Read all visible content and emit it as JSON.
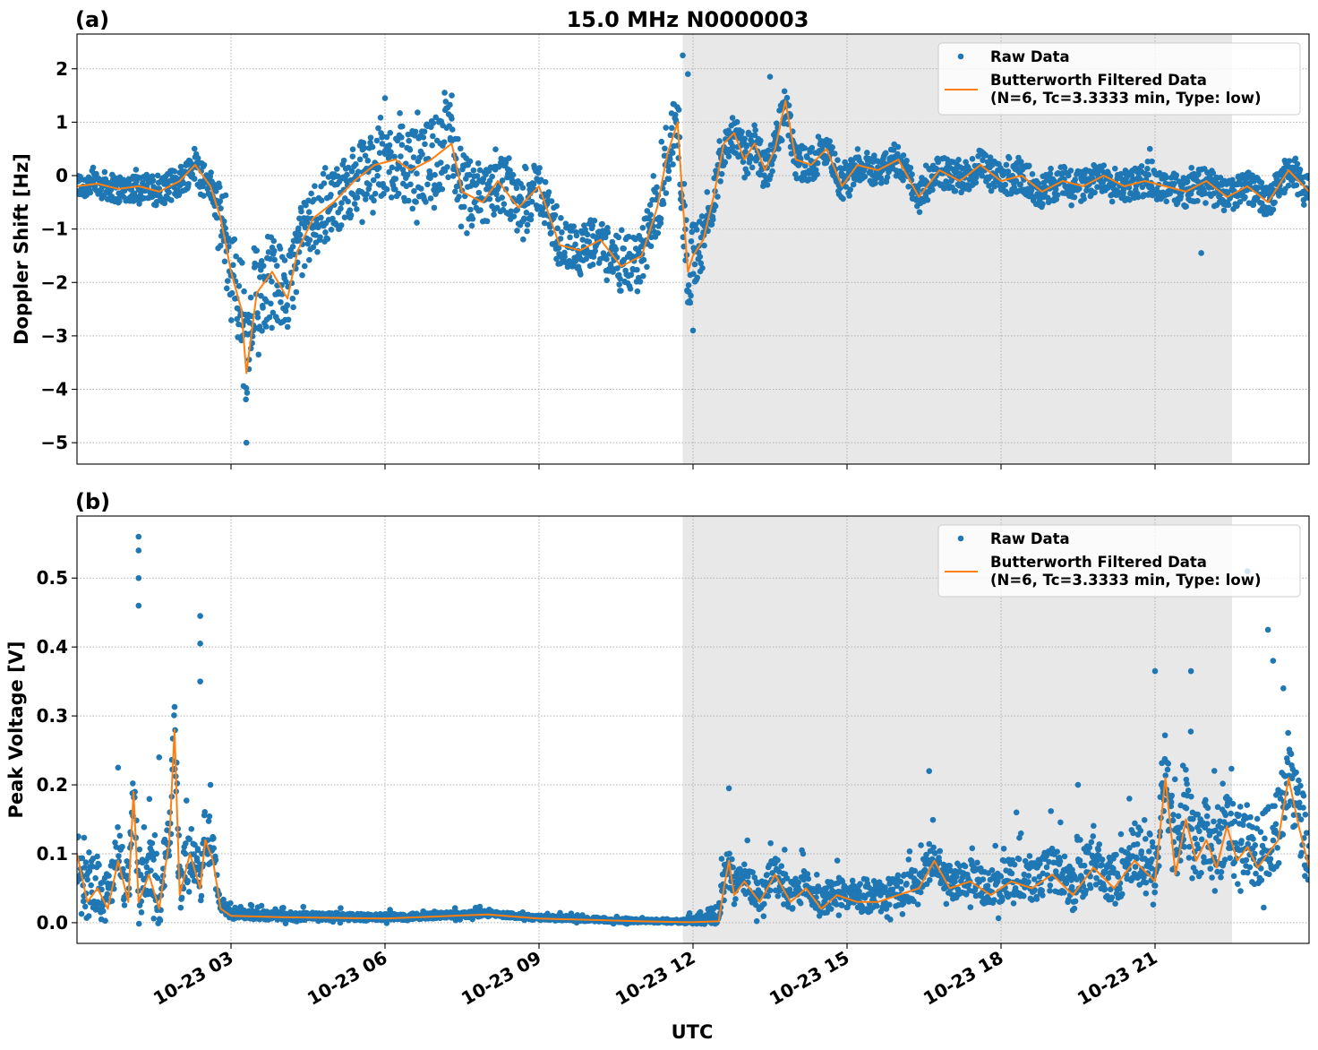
{
  "title": "15.0 MHz N0000003",
  "xlabel": "UTC",
  "colors": {
    "raw": "#1f77b4",
    "filtered": "#ff7f0e",
    "shade": "#e8e8e8"
  },
  "chart_data": [
    {
      "panel_label": "(a)",
      "type": "line",
      "ylabel": "Doppler Shift [Hz]",
      "xlim_hours": [
        0.0,
        24.0
      ],
      "ylim": [
        -5.4,
        2.65
      ],
      "yticks": [
        2,
        1,
        0,
        -1,
        -2,
        -3,
        -4,
        -5
      ],
      "ytick_labels": [
        "2",
        "1",
        "0",
        "−1",
        "−2",
        "−3",
        "−4",
        "−5"
      ],
      "xticks_hours": [
        3,
        6,
        9,
        12,
        15,
        18,
        21
      ],
      "xtick_labels": [
        "10-23 03",
        "10-23 06",
        "10-23 09",
        "10-23 12",
        "10-23 15",
        "10-23 18",
        "10-23 21"
      ],
      "shaded_span_hours": [
        11.8,
        22.5
      ],
      "legend": {
        "placement": "upper right",
        "entries": [
          "Raw Data",
          "Butterworth Filtered Data",
          "(N=6, Tc=3.3333 min, Type: low)"
        ]
      },
      "series": [
        {
          "name": "Butterworth Filtered Data",
          "x_hours": [
            0.0,
            0.4,
            0.8,
            1.2,
            1.6,
            2.0,
            2.3,
            2.6,
            2.8,
            3.0,
            3.2,
            3.3,
            3.5,
            3.8,
            4.1,
            4.3,
            4.6,
            5.0,
            5.4,
            5.8,
            6.2,
            6.5,
            6.9,
            7.3,
            7.5,
            7.9,
            8.2,
            8.6,
            9.0,
            9.4,
            9.8,
            10.2,
            10.6,
            11.0,
            11.3,
            11.5,
            11.7,
            11.8,
            11.9,
            12.0,
            12.2,
            12.4,
            12.6,
            12.8,
            13.0,
            13.2,
            13.4,
            13.6,
            13.8,
            14.0,
            14.3,
            14.6,
            14.9,
            15.2,
            15.6,
            16.0,
            16.4,
            16.8,
            17.2,
            17.6,
            18.0,
            18.4,
            18.8,
            19.2,
            19.6,
            20.0,
            20.4,
            20.8,
            21.2,
            21.6,
            22.0,
            22.4,
            22.8,
            23.2,
            23.6,
            24.0
          ],
          "y": [
            -0.2,
            -0.15,
            -0.25,
            -0.2,
            -0.3,
            -0.1,
            0.2,
            -0.2,
            -0.8,
            -1.8,
            -2.5,
            -3.7,
            -2.2,
            -1.8,
            -2.3,
            -1.4,
            -0.8,
            -0.5,
            -0.1,
            0.2,
            0.3,
            0.1,
            0.3,
            0.6,
            -0.3,
            -0.5,
            -0.1,
            -0.6,
            -0.2,
            -1.3,
            -1.4,
            -1.2,
            -1.7,
            -1.5,
            -0.6,
            0.4,
            1.0,
            -0.5,
            -1.8,
            -1.5,
            -1.2,
            -0.4,
            0.6,
            0.8,
            0.3,
            0.6,
            0.1,
            0.5,
            1.4,
            0.3,
            0.2,
            0.5,
            -0.2,
            0.2,
            0.1,
            0.3,
            -0.4,
            0.1,
            -0.1,
            0.2,
            -0.1,
            0.0,
            -0.3,
            -0.1,
            -0.2,
            0.0,
            -0.2,
            -0.1,
            -0.2,
            -0.3,
            -0.1,
            -0.4,
            -0.2,
            -0.5,
            0.1,
            -0.3
          ]
        },
        {
          "name": "Raw Data",
          "scatter_around": "Butterworth Filtered Data",
          "spread_hz": [
            [
              0.0,
              0.25
            ],
            [
              2.6,
              0.3
            ],
            [
              3.0,
              0.9
            ],
            [
              3.3,
              1.1
            ],
            [
              4.0,
              0.7
            ],
            [
              5.0,
              0.6
            ],
            [
              6.0,
              0.7
            ],
            [
              7.3,
              0.8
            ],
            [
              8.0,
              0.55
            ],
            [
              9.5,
              0.45
            ],
            [
              11.0,
              0.5
            ],
            [
              11.7,
              0.8
            ],
            [
              12.0,
              0.6
            ],
            [
              12.5,
              0.4
            ],
            [
              13.0,
              0.4
            ],
            [
              15.0,
              0.3
            ],
            [
              18.0,
              0.3
            ],
            [
              24.0,
              0.3
            ]
          ],
          "outliers": [
            [
              3.3,
              -5.0
            ],
            [
              11.8,
              2.25
            ],
            [
              11.9,
              1.9
            ],
            [
              13.5,
              1.85
            ],
            [
              12.0,
              -2.9
            ],
            [
              6.0,
              1.45
            ],
            [
              7.3,
              1.5
            ],
            [
              20.9,
              0.5
            ],
            [
              21.9,
              -1.45
            ]
          ]
        }
      ]
    },
    {
      "panel_label": "(b)",
      "type": "line",
      "ylabel": "Peak Voltage [V]",
      "xlim_hours": [
        0.0,
        24.0
      ],
      "ylim": [
        -0.03,
        0.59
      ],
      "yticks": [
        0.0,
        0.1,
        0.2,
        0.3,
        0.4,
        0.5
      ],
      "ytick_labels": [
        "0.0",
        "0.1",
        "0.2",
        "0.3",
        "0.4",
        "0.5"
      ],
      "xticks_hours": [
        3,
        6,
        9,
        12,
        15,
        18,
        21
      ],
      "xtick_labels": [
        "10-23 03",
        "10-23 06",
        "10-23 09",
        "10-23 12",
        "10-23 15",
        "10-23 18",
        "10-23 21"
      ],
      "shaded_span_hours": [
        11.8,
        22.5
      ],
      "legend": {
        "placement": "upper right",
        "entries": [
          "Raw Data",
          "Butterworth Filtered Data",
          "(N=6, Tc=3.3333 min, Type: low)"
        ]
      },
      "series": [
        {
          "name": "Butterworth Filtered Data",
          "x_hours": [
            0.0,
            0.2,
            0.4,
            0.6,
            0.8,
            1.0,
            1.1,
            1.2,
            1.4,
            1.6,
            1.8,
            1.9,
            2.0,
            2.2,
            2.4,
            2.5,
            2.65,
            2.8,
            3.0,
            4.0,
            6.0,
            8.0,
            9.0,
            10.0,
            11.0,
            11.8,
            12.0,
            12.5,
            12.6,
            12.7,
            12.8,
            13.0,
            13.3,
            13.6,
            13.9,
            14.2,
            14.5,
            14.8,
            15.2,
            15.6,
            16.0,
            16.4,
            16.7,
            17.0,
            17.4,
            17.8,
            18.2,
            18.6,
            19.0,
            19.4,
            19.8,
            20.2,
            20.6,
            21.0,
            21.2,
            21.4,
            21.6,
            21.8,
            22.0,
            22.2,
            22.4,
            22.6,
            22.8,
            23.0,
            23.2,
            23.4,
            23.6,
            23.8,
            24.0
          ],
          "y": [
            0.1,
            0.03,
            0.05,
            0.02,
            0.09,
            0.03,
            0.19,
            0.03,
            0.07,
            0.02,
            0.12,
            0.28,
            0.04,
            0.1,
            0.05,
            0.12,
            0.09,
            0.02,
            0.01,
            0.008,
            0.006,
            0.012,
            0.006,
            0.004,
            0.002,
            0.001,
            0.001,
            0.002,
            0.05,
            0.09,
            0.04,
            0.06,
            0.03,
            0.07,
            0.03,
            0.05,
            0.02,
            0.04,
            0.03,
            0.03,
            0.04,
            0.05,
            0.09,
            0.05,
            0.06,
            0.04,
            0.06,
            0.05,
            0.07,
            0.04,
            0.08,
            0.05,
            0.09,
            0.06,
            0.21,
            0.07,
            0.15,
            0.09,
            0.12,
            0.08,
            0.14,
            0.09,
            0.11,
            0.08,
            0.1,
            0.12,
            0.21,
            0.14,
            0.08
          ]
        },
        {
          "name": "Raw Data",
          "scatter_around": "Butterworth Filtered Data",
          "spread_v": [
            [
              0.0,
              0.05
            ],
            [
              2.6,
              0.05
            ],
            [
              2.8,
              0.008
            ],
            [
              11.8,
              0.003
            ],
            [
              12.6,
              0.03
            ],
            [
              15.0,
              0.025
            ],
            [
              18.0,
              0.035
            ],
            [
              20.5,
              0.05
            ],
            [
              21.0,
              0.07
            ],
            [
              24.0,
              0.07
            ]
          ],
          "outliers": [
            [
              1.2,
              0.56
            ],
            [
              1.2,
              0.54
            ],
            [
              1.2,
              0.5
            ],
            [
              1.2,
              0.46
            ],
            [
              2.4,
              0.445
            ],
            [
              2.4,
              0.405
            ],
            [
              2.4,
              0.35
            ],
            [
              0.8,
              0.225
            ],
            [
              1.6,
              0.24
            ],
            [
              2.6,
              0.2
            ],
            [
              12.7,
              0.195
            ],
            [
              16.6,
              0.22
            ],
            [
              19.5,
              0.2
            ],
            [
              21.0,
              0.365
            ],
            [
              21.7,
              0.365
            ],
            [
              22.8,
              0.51
            ],
            [
              23.2,
              0.425
            ],
            [
              23.3,
              0.38
            ],
            [
              23.5,
              0.34
            ],
            [
              20.5,
              0.18
            ],
            [
              18.3,
              0.16
            ]
          ]
        }
      ]
    }
  ]
}
